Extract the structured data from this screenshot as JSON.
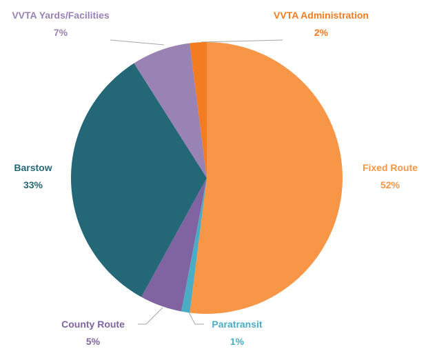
{
  "chart_data": {
    "type": "pie",
    "categories": [
      "Fixed Route",
      "Paratransit",
      "County Route",
      "Barstow",
      "VVTA Yards/Facilities",
      "VVTA Administration"
    ],
    "values": [
      52,
      1,
      5,
      33,
      7,
      2
    ],
    "value_labels": [
      "52%",
      "1%",
      "5%",
      "33%",
      "7%",
      "2%"
    ],
    "colors": [
      "#F79646",
      "#4BACC6",
      "#8064A2",
      "#246878",
      "#9982B4",
      "#F47C20"
    ]
  }
}
